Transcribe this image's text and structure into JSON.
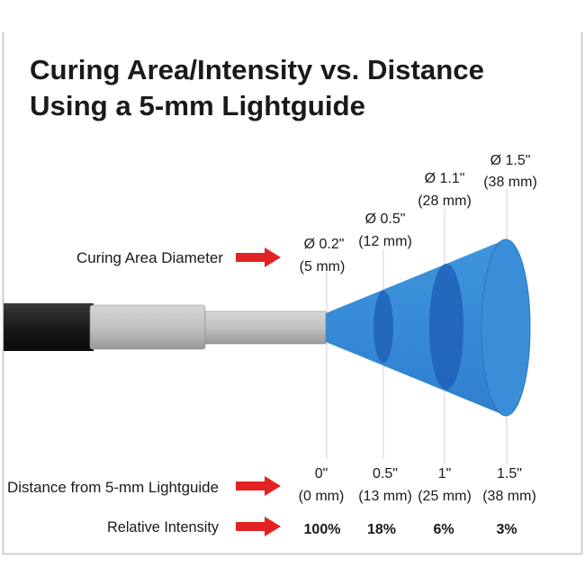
{
  "title": {
    "line1": "Curing Area/Intensity vs. Distance",
    "line2": "Using a 5-mm Lightguide"
  },
  "colors": {
    "cone": "#3a8ed8",
    "cone_ring": "#1f62b8",
    "arrow": "#e32222",
    "cable": "#222222",
    "sleeve": "#bdbdbd"
  },
  "rows": {
    "diameter_label": "Curing Area Diameter",
    "distance_label": "Distance from 5-mm Lightguide",
    "intensity_label": "Relative Intensity"
  },
  "diameters": [
    {
      "inch": "Ø 0.2\"",
      "mm": "(5 mm)"
    },
    {
      "inch": "Ø 0.5\"",
      "mm": "(12 mm)"
    },
    {
      "inch": "Ø 1.1\"",
      "mm": "(28 mm)"
    },
    {
      "inch": "Ø 1.5\"",
      "mm": "(38 mm)"
    }
  ],
  "distances": [
    {
      "inch": "0\"",
      "mm": "(0 mm)"
    },
    {
      "inch": "0.5\"",
      "mm": "(13 mm)"
    },
    {
      "inch": "1\"",
      "mm": "(25 mm)"
    },
    {
      "inch": "1.5\"",
      "mm": "(38 mm)"
    }
  ],
  "intensities": [
    "100%",
    "18%",
    "6%",
    "3%"
  ]
}
